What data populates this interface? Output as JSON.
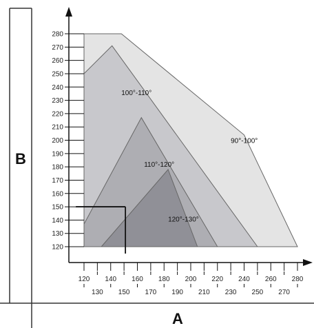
{
  "chart_data": {
    "type": "area",
    "title": "",
    "xlabel": "A",
    "ylabel": "B",
    "xlim": [
      115,
      285
    ],
    "ylim": [
      115,
      285
    ],
    "x_ticks": [
      120,
      130,
      140,
      150,
      160,
      170,
      180,
      190,
      200,
      210,
      220,
      230,
      240,
      250,
      260,
      270,
      280
    ],
    "y_ticks": [
      120,
      130,
      140,
      150,
      160,
      170,
      180,
      190,
      200,
      210,
      220,
      230,
      240,
      250,
      260,
      270,
      280
    ],
    "grid": false,
    "series": [
      {
        "name": "90°-100°",
        "color": "#e4e4e4",
        "points": [
          [
            120,
            280
          ],
          [
            148,
            280
          ],
          [
            240,
            204
          ],
          [
            280,
            120
          ],
          [
            120,
            120
          ]
        ]
      },
      {
        "name": "100°-110°",
        "color": "#c8c8cc",
        "points": [
          [
            120,
            250
          ],
          [
            141,
            271
          ],
          [
            250,
            120
          ],
          [
            120,
            120
          ]
        ]
      },
      {
        "name": "110°-120°",
        "color": "#aeaeb3",
        "points": [
          [
            120,
            137
          ],
          [
            163,
            217
          ],
          [
            220,
            120
          ],
          [
            120,
            120
          ]
        ]
      },
      {
        "name": "120°-130°",
        "color": "#909097",
        "points": [
          [
            133,
            120
          ],
          [
            183,
            178
          ],
          [
            205,
            120
          ]
        ]
      }
    ],
    "region_labels": [
      {
        "text": "90°-100°",
        "x": 230,
        "y": 198
      },
      {
        "text": "100°-110°",
        "x": 148,
        "y": 234
      },
      {
        "text": "110°-120°",
        "x": 165,
        "y": 180
      },
      {
        "text": "120°-130°",
        "x": 183,
        "y": 139
      }
    ],
    "example_point": {
      "x": 150,
      "y": 150
    }
  }
}
